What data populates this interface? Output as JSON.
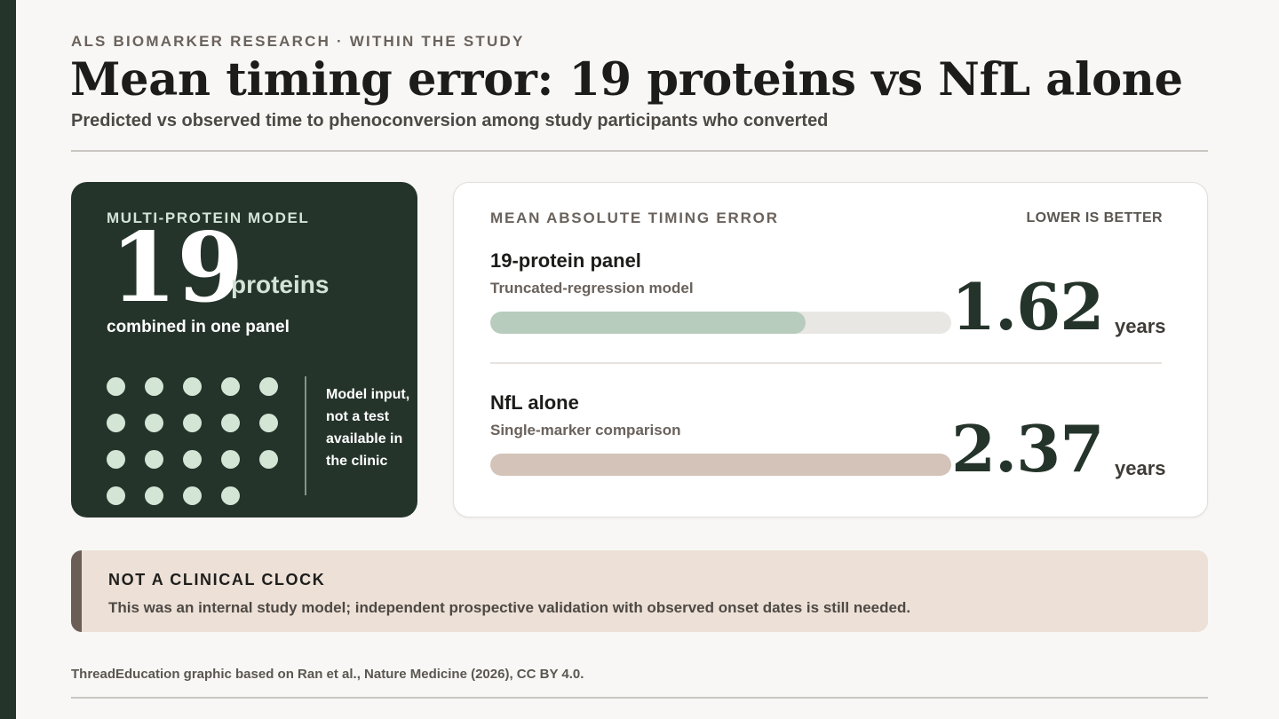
{
  "header": {
    "kicker": "ALS BIOMARKER RESEARCH · WITHIN THE STUDY",
    "title": "Mean timing error: 19 proteins vs NfL alone",
    "subtitle": "Predicted vs observed time to phenoconversion among study participants who converted"
  },
  "model_card": {
    "label": "MULTI-PROTEIN MODEL",
    "count": "19",
    "unit": "proteins",
    "caption": "combined in one panel",
    "dot_count": 19,
    "note": "Model input, not a test available in the clinic"
  },
  "comparison": {
    "heading": "MEAN ABSOLUTE TIMING ERROR",
    "note": "LOWER IS BETTER"
  },
  "chart_data": {
    "type": "bar",
    "title": "MEAN ABSOLUTE TIMING ERROR",
    "orientation": "horizontal",
    "unit": "years",
    "categories": [
      "19-protein panel",
      "NfL alone"
    ],
    "descriptions": [
      "Truncated-regression model",
      "Single-marker comparison"
    ],
    "values": [
      1.62,
      2.37
    ],
    "value_labels": [
      "1.62",
      "2.37"
    ],
    "xlim": [
      0,
      2.37
    ],
    "colors": [
      "#b8ccbd",
      "#d4c3b8"
    ],
    "track_color": "#e9e7e4"
  },
  "callout": {
    "title": "NOT A CLINICAL CLOCK",
    "text": "This was an internal study model; independent prospective validation with observed onset dates is still needed."
  },
  "footer": {
    "source": "ThreadEducation graphic based on Ran et al., Nature Medicine (2026), CC BY 4.0."
  }
}
